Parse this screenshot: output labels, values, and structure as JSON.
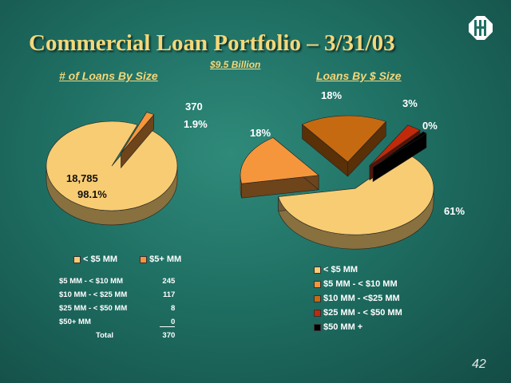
{
  "title": "Commercial Loan Portfolio – 3/31/03",
  "subtitle": "$9.5 Billion",
  "page_number": "42",
  "colors": {
    "yellow": "#f7cc73",
    "orange": "#f5963c",
    "rust": "#c66a12",
    "red": "#c02a0a",
    "black": "#000000",
    "title": "#f4d77a"
  },
  "chart_data": [
    {
      "type": "pie",
      "title": "# of Loans By Size",
      "categories": [
        "< $5 MM",
        "$5+ MM"
      ],
      "values": [
        18785,
        370
      ],
      "percents": [
        "98.1%",
        "1.9%"
      ],
      "value_labels": [
        "18,785",
        "370"
      ],
      "legend": "bottom"
    },
    {
      "type": "pie",
      "title": "Loans By $ Size",
      "categories": [
        "< $5 MM",
        "$5 MM - < $10 MM",
        "$10 MM - <$25 MM",
        "$25 MM - < $50 MM",
        "$50 MM +"
      ],
      "values": [
        61,
        18,
        18,
        3,
        0
      ],
      "percents": [
        "61%",
        "18%",
        "18%",
        "3%",
        "0%"
      ],
      "legend": "bottom"
    }
  ],
  "distribution_table": {
    "rows": [
      {
        "label": "$5 MM - < $10 MM",
        "value": "245"
      },
      {
        "label": "$10 MM - < $25 MM",
        "value": "117"
      },
      {
        "label": "$25 MM - < $50 MM",
        "value": "8"
      },
      {
        "label": "$50+ MM",
        "value": "0"
      }
    ],
    "total_label": "Total",
    "total_value": "370"
  }
}
